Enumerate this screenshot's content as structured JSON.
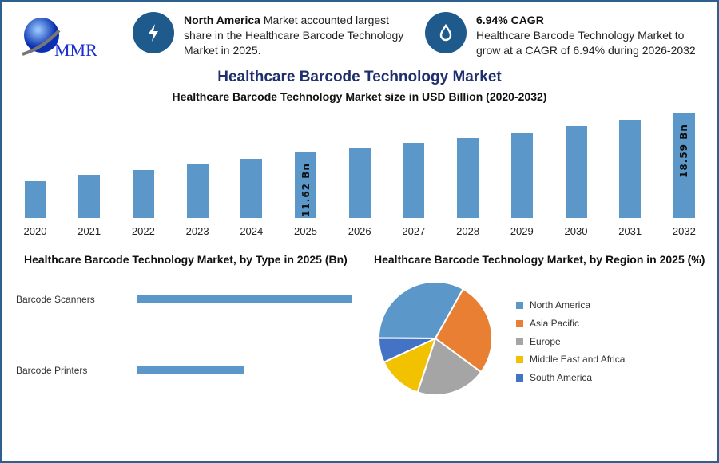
{
  "logo": {
    "text": "MMR"
  },
  "highlights": [
    {
      "icon": "lightning-bolt-icon",
      "bold": "North America",
      "text": " Market accounted largest share in the Healthcare Barcode Technology Market in 2025."
    },
    {
      "icon": "flame-drop-icon",
      "bold": "6.94% CAGR",
      "text": "Healthcare Barcode Technology Market to grow at a CAGR of 6.94% during 2026-2032"
    }
  ],
  "title": "Healthcare Barcode Technology Market",
  "colors": {
    "bar": "#5b97c9",
    "frame": "#2e5f8e",
    "icon_circle": "#1f5a8c",
    "title": "#1f2f6b"
  },
  "chart_data": [
    {
      "type": "bar",
      "title": "Healthcare Barcode Technology Market size in USD Billion (2020-2032)",
      "categories": [
        "2020",
        "2021",
        "2022",
        "2023",
        "2024",
        "2025",
        "2026",
        "2027",
        "2028",
        "2029",
        "2030",
        "2031",
        "2032"
      ],
      "values": [
        6.5,
        7.6,
        8.5,
        9.6,
        10.5,
        11.62,
        12.43,
        13.29,
        14.21,
        15.2,
        16.25,
        17.38,
        18.59
      ],
      "data_labels": {
        "2025": "11.62 Bn",
        "2032": "18.59 Bn"
      },
      "grid": false
    },
    {
      "type": "bar",
      "orientation": "horizontal",
      "title": "Healthcare Barcode Technology Market, by Type in 2025 (Bn)",
      "categories": [
        "Barcode Scanners",
        "Barcode Printers"
      ],
      "values": [
        7.75,
        3.87
      ]
    },
    {
      "type": "pie",
      "title": "Healthcare Barcode Technology Market, by Region in 2025 (%)",
      "legend": "right",
      "slices": [
        {
          "name": "North America",
          "value": 33,
          "color": "#5b97c9"
        },
        {
          "name": "Asia Pacific",
          "value": 27,
          "color": "#e97f33"
        },
        {
          "name": "Europe",
          "value": 20,
          "color": "#a5a5a5"
        },
        {
          "name": "Middle East and Africa",
          "value": 13,
          "color": "#f2c100"
        },
        {
          "name": "South America",
          "value": 7,
          "color": "#4472c4"
        }
      ]
    }
  ]
}
